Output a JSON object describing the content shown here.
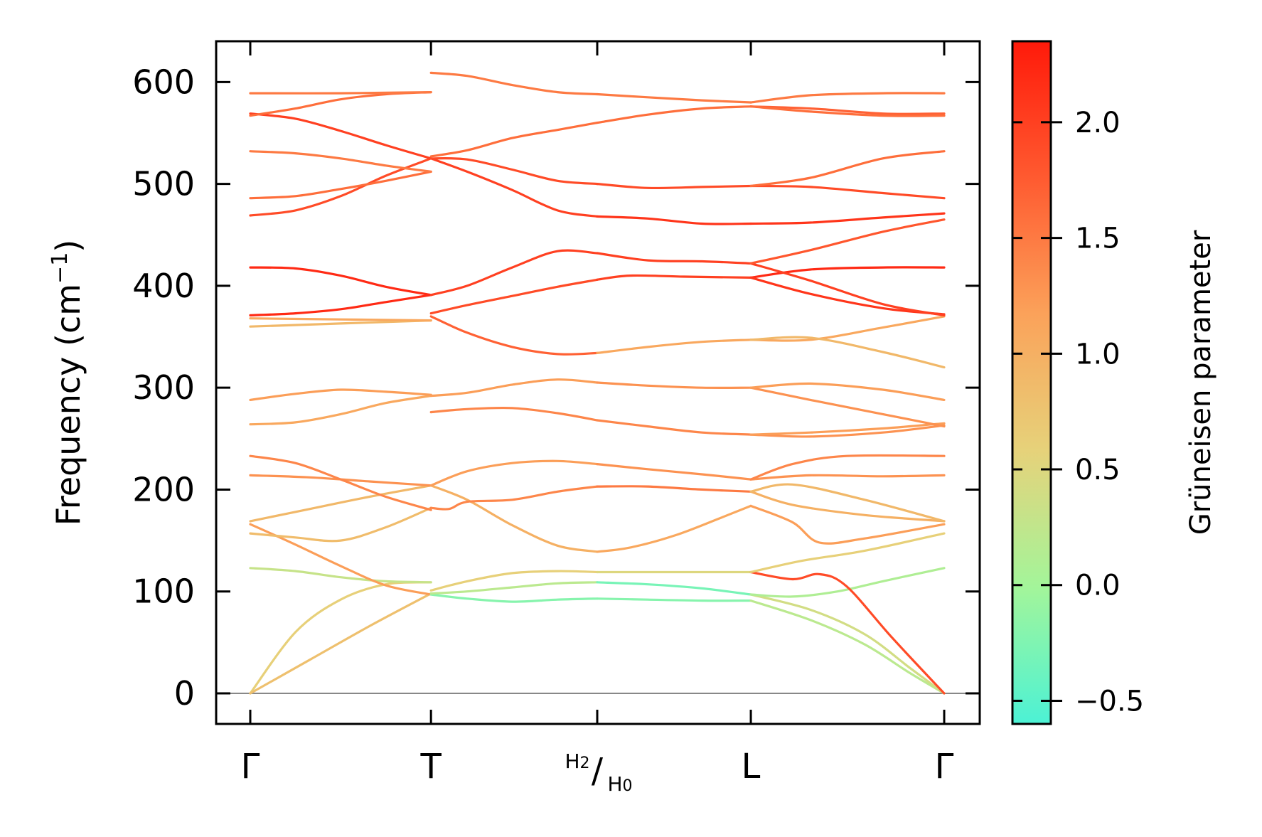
{
  "chart_data": {
    "type": "line",
    "title": "",
    "ylabel": "Frequency (cm",
    "ylabel_sup": "−1",
    "ylabel_close": ")",
    "xlabel": "",
    "ylim": [
      -30,
      640
    ],
    "yticks": [
      0,
      100,
      200,
      300,
      400,
      500,
      600
    ],
    "ytick_labels": [
      "0",
      "100",
      "200",
      "300",
      "400",
      "500",
      "600"
    ],
    "kpoints": [
      {
        "pos": 0.0,
        "label": "Γ"
      },
      {
        "pos": 1.0,
        "label": "T"
      },
      {
        "pos": 1.92,
        "label_main": "/",
        "label_num": "H",
        "label_num_sub": "2",
        "label_den": "H",
        "label_den_sub": "0"
      },
      {
        "pos": 2.77,
        "label": "L"
      },
      {
        "pos": 3.84,
        "label": "Γ"
      }
    ],
    "colorbar": {
      "label": "Grüneisen parameter",
      "range": [
        -0.6,
        2.35
      ],
      "ticks": [
        -0.5,
        0.0,
        0.5,
        1.0,
        1.5,
        2.0
      ],
      "tick_labels": [
        "−0.5",
        "0.0",
        "0.5",
        "1.0",
        "1.5",
        "2.0"
      ],
      "colors": [
        "#4cf2d5",
        "#a3f59a",
        "#e6d27a",
        "#fba25a",
        "#ff5a30",
        "#ff1a0a"
      ]
    },
    "zero_line": {
      "y": 0,
      "color": "#888888"
    },
    "series": [
      {
        "seg": "GT",
        "g": 0.6,
        "x": [
          0,
          0.25,
          0.5,
          0.75,
          1.0
        ],
        "y": [
          0,
          60,
          92,
          107,
          109
        ]
      },
      {
        "seg": "GT",
        "g": 0.8,
        "x": [
          0,
          0.33,
          0.66,
          1.0
        ],
        "y": [
          0,
          33,
          66,
          98
        ]
      },
      {
        "seg": "GT",
        "g": 0.3,
        "x": [
          0,
          0.25,
          0.5,
          0.75,
          1.0
        ],
        "y": [
          123,
          120,
          114,
          110,
          109
        ]
      },
      {
        "seg": "GT",
        "g": 1.2,
        "x": [
          0,
          0.25,
          0.5,
          0.75,
          1.0
        ],
        "y": [
          166,
          146,
          125,
          106,
          97
        ]
      },
      {
        "seg": "GT",
        "g": 0.85,
        "x": [
          0,
          0.25,
          0.5,
          0.75,
          1.0
        ],
        "y": [
          157,
          153,
          150,
          163,
          182
        ]
      },
      {
        "seg": "GT",
        "g": 0.9,
        "x": [
          0,
          0.33,
          0.66,
          1.0
        ],
        "y": [
          169,
          181,
          193,
          204
        ]
      },
      {
        "seg": "GT",
        "g": 1.3,
        "x": [
          0,
          0.33,
          0.66,
          1.0
        ],
        "y": [
          214,
          212,
          208,
          204
        ]
      },
      {
        "seg": "GT",
        "g": 1.4,
        "x": [
          0,
          0.25,
          0.5,
          0.75,
          1.0
        ],
        "y": [
          233,
          226,
          210,
          193,
          180
        ]
      },
      {
        "seg": "GT",
        "g": 1.1,
        "x": [
          0,
          0.25,
          0.5,
          0.75,
          1.0
        ],
        "y": [
          264,
          266,
          274,
          285,
          292
        ]
      },
      {
        "seg": "GT",
        "g": 1.2,
        "x": [
          0,
          0.25,
          0.5,
          0.75,
          1.0
        ],
        "y": [
          288,
          294,
          298,
          296,
          293
        ]
      },
      {
        "seg": "GT",
        "g": 0.9,
        "x": [
          0,
          0.5,
          1.0
        ],
        "y": [
          360,
          363,
          366
        ]
      },
      {
        "seg": "GT",
        "g": 1.1,
        "x": [
          0,
          0.5,
          1.0
        ],
        "y": [
          368,
          367,
          366
        ]
      },
      {
        "seg": "GT",
        "g": 2.2,
        "x": [
          0,
          0.25,
          0.5,
          0.75,
          1.0
        ],
        "y": [
          371,
          373,
          377,
          384,
          391
        ]
      },
      {
        "seg": "GT",
        "g": 2.2,
        "x": [
          0,
          0.25,
          0.5,
          0.75,
          1.0
        ],
        "y": [
          418,
          417,
          410,
          399,
          391
        ]
      },
      {
        "seg": "GT",
        "g": 1.9,
        "x": [
          0,
          0.25,
          0.5,
          0.75,
          1.0
        ],
        "y": [
          469,
          474,
          488,
          508,
          525
        ]
      },
      {
        "seg": "GT",
        "g": 1.6,
        "x": [
          0,
          0.25,
          0.5,
          0.75,
          1.0
        ],
        "y": [
          486,
          488,
          495,
          503,
          512
        ]
      },
      {
        "seg": "GT",
        "g": 1.5,
        "x": [
          0,
          0.25,
          0.5,
          0.75,
          1.0
        ],
        "y": [
          532,
          530,
          525,
          518,
          512
        ]
      },
      {
        "seg": "GT",
        "g": 2.0,
        "x": [
          0,
          0.25,
          0.5,
          0.75,
          1.0
        ],
        "y": [
          569,
          564,
          552,
          538,
          525
        ]
      },
      {
        "seg": "GT",
        "g": 1.6,
        "x": [
          0,
          0.25,
          0.5,
          0.75,
          1.0
        ],
        "y": [
          567,
          574,
          583,
          588,
          590
        ]
      },
      {
        "seg": "GT",
        "g": 1.5,
        "x": [
          0,
          0.5,
          1.0
        ],
        "y": [
          589,
          589,
          590
        ]
      },
      {
        "seg": "TH",
        "g": -0.2,
        "x": [
          1.0,
          1.2,
          1.45,
          1.7,
          1.92
        ],
        "y": [
          97,
          93,
          90,
          92,
          93
        ]
      },
      {
        "seg": "TH",
        "g": 0.2,
        "x": [
          1.0,
          1.2,
          1.45,
          1.7,
          1.92
        ],
        "y": [
          98,
          100,
          104,
          108,
          109
        ]
      },
      {
        "seg": "TH",
        "g": 0.6,
        "x": [
          1.0,
          1.2,
          1.45,
          1.7,
          1.92
        ],
        "y": [
          101,
          110,
          118,
          120,
          119
        ]
      },
      {
        "seg": "TH",
        "g": 1.0,
        "x": [
          1.0,
          1.2,
          1.45,
          1.7,
          1.92
        ],
        "y": [
          204,
          190,
          165,
          145,
          139
        ]
      },
      {
        "seg": "TH",
        "g": 1.4,
        "x": [
          1.0,
          1.1,
          1.2,
          1.45,
          1.7,
          1.92
        ],
        "y": [
          182,
          181,
          188,
          190,
          198,
          203
        ]
      },
      {
        "seg": "TH",
        "g": 1.2,
        "x": [
          1.0,
          1.2,
          1.45,
          1.7,
          1.92
        ],
        "y": [
          204,
          218,
          226,
          228,
          225
        ]
      },
      {
        "seg": "TH",
        "g": 1.4,
        "x": [
          1.0,
          1.2,
          1.45,
          1.7,
          1.92
        ],
        "y": [
          276,
          279,
          280,
          275,
          268
        ]
      },
      {
        "seg": "TH",
        "g": 1.2,
        "x": [
          1.0,
          1.2,
          1.45,
          1.7,
          1.92
        ],
        "y": [
          292,
          295,
          303,
          308,
          305
        ]
      },
      {
        "seg": "TH",
        "g": 1.7,
        "x": [
          1.0,
          1.2,
          1.45,
          1.7,
          1.92
        ],
        "y": [
          370,
          354,
          340,
          333,
          334
        ]
      },
      {
        "seg": "TH",
        "g": 1.9,
        "x": [
          1.0,
          1.2,
          1.45,
          1.7,
          1.92
        ],
        "y": [
          373,
          381,
          390,
          399,
          406
        ]
      },
      {
        "seg": "TH",
        "g": 2.0,
        "x": [
          1.0,
          1.2,
          1.45,
          1.7,
          1.92
        ],
        "y": [
          391,
          400,
          418,
          434,
          432
        ]
      },
      {
        "seg": "TH",
        "g": 2.0,
        "x": [
          1.0,
          1.2,
          1.45,
          1.7,
          1.92
        ],
        "y": [
          525,
          512,
          494,
          474,
          468
        ]
      },
      {
        "seg": "TH",
        "g": 1.9,
        "x": [
          1.0,
          1.2,
          1.45,
          1.7,
          1.92
        ],
        "y": [
          525,
          524,
          514,
          503,
          500
        ]
      },
      {
        "seg": "TH",
        "g": 1.6,
        "x": [
          1.0,
          1.2,
          1.45,
          1.7,
          1.92
        ],
        "y": [
          527,
          533,
          545,
          553,
          560
        ]
      },
      {
        "seg": "TH",
        "g": 1.5,
        "x": [
          1.0,
          1.2,
          1.45,
          1.7,
          1.92
        ],
        "y": [
          609,
          606,
          597,
          590,
          588
        ]
      },
      {
        "seg": "HL",
        "g": -0.2,
        "x": [
          1.92,
          2.2,
          2.5,
          2.77
        ],
        "y": [
          93,
          92,
          91,
          91
        ]
      },
      {
        "seg": "HL",
        "g": -0.3,
        "x": [
          1.92,
          2.2,
          2.5,
          2.77
        ],
        "y": [
          109,
          107,
          103,
          97
        ]
      },
      {
        "seg": "HL",
        "g": 0.5,
        "x": [
          1.92,
          2.2,
          2.5,
          2.77
        ],
        "y": [
          119,
          119,
          119,
          119
        ]
      },
      {
        "seg": "HL",
        "g": 1.1,
        "x": [
          1.92,
          2.1,
          2.35,
          2.6,
          2.77
        ],
        "y": [
          139,
          143,
          155,
          172,
          184
        ]
      },
      {
        "seg": "HL",
        "g": 1.5,
        "x": [
          1.92,
          2.2,
          2.5,
          2.77
        ],
        "y": [
          203,
          203,
          200,
          198
        ]
      },
      {
        "seg": "HL",
        "g": 1.3,
        "x": [
          1.92,
          2.2,
          2.5,
          2.77
        ],
        "y": [
          225,
          220,
          215,
          210
        ]
      },
      {
        "seg": "HL",
        "g": 1.4,
        "x": [
          1.92,
          2.2,
          2.5,
          2.77
        ],
        "y": [
          268,
          262,
          256,
          254
        ]
      },
      {
        "seg": "HL",
        "g": 1.3,
        "x": [
          1.92,
          2.2,
          2.5,
          2.77
        ],
        "y": [
          305,
          302,
          300,
          300
        ]
      },
      {
        "seg": "HL",
        "g": 1.1,
        "x": [
          1.92,
          2.2,
          2.5,
          2.77
        ],
        "y": [
          334,
          340,
          345,
          347
        ]
      },
      {
        "seg": "HL",
        "g": 2.0,
        "x": [
          1.92,
          2.1,
          2.4,
          2.77
        ],
        "y": [
          406,
          410,
          409,
          408
        ]
      },
      {
        "seg": "HL",
        "g": 2.0,
        "x": [
          1.92,
          2.2,
          2.5,
          2.77
        ],
        "y": [
          432,
          425,
          424,
          422
        ]
      },
      {
        "seg": "HL",
        "g": 2.1,
        "x": [
          1.92,
          2.2,
          2.5,
          2.77
        ],
        "y": [
          468,
          466,
          461,
          461
        ]
      },
      {
        "seg": "HL",
        "g": 1.9,
        "x": [
          1.92,
          2.2,
          2.5,
          2.77
        ],
        "y": [
          500,
          496,
          497,
          498
        ]
      },
      {
        "seg": "HL",
        "g": 1.6,
        "x": [
          1.92,
          2.2,
          2.5,
          2.77
        ],
        "y": [
          560,
          568,
          574,
          576
        ]
      },
      {
        "seg": "HL",
        "g": 1.5,
        "x": [
          1.92,
          2.2,
          2.5,
          2.77
        ],
        "y": [
          588,
          585,
          582,
          580
        ]
      },
      {
        "seg": "LG",
        "g": 0.2,
        "x": [
          2.77,
          3.1,
          3.4,
          3.65,
          3.84
        ],
        "y": [
          91,
          72,
          48,
          20,
          0
        ]
      },
      {
        "seg": "LG",
        "g": 0.4,
        "x": [
          2.77,
          3.1,
          3.4,
          3.65,
          3.84
        ],
        "y": [
          97,
          82,
          58,
          25,
          0
        ]
      },
      {
        "seg": "LG",
        "g": 0.1,
        "x": [
          2.77,
          3.0,
          3.25,
          3.5,
          3.84
        ],
        "y": [
          97,
          95,
          100,
          110,
          123
        ]
      },
      {
        "seg": "LG",
        "g": 1.9,
        "x": [
          2.77,
          3.0,
          3.15,
          3.3,
          3.55,
          3.84
        ],
        "y": [
          119,
          112,
          117,
          105,
          55,
          0
        ]
      },
      {
        "seg": "LG",
        "g": 0.6,
        "x": [
          2.77,
          3.05,
          3.4,
          3.84
        ],
        "y": [
          119,
          130,
          140,
          157
        ]
      },
      {
        "seg": "LG",
        "g": 1.2,
        "x": [
          2.77,
          3.0,
          3.15,
          3.4,
          3.84
        ],
        "y": [
          184,
          168,
          148,
          152,
          166
        ]
      },
      {
        "seg": "LG",
        "g": 1.0,
        "x": [
          2.77,
          3.0,
          3.4,
          3.84
        ],
        "y": [
          198,
          185,
          175,
          169
        ]
      },
      {
        "seg": "LG",
        "g": 0.9,
        "x": [
          2.77,
          3.0,
          3.4,
          3.84
        ],
        "y": [
          198,
          205,
          190,
          169
        ]
      },
      {
        "seg": "LG",
        "g": 1.3,
        "x": [
          2.77,
          3.1,
          3.5,
          3.84
        ],
        "y": [
          210,
          214,
          213,
          214
        ]
      },
      {
        "seg": "LG",
        "g": 1.4,
        "x": [
          2.77,
          3.0,
          3.3,
          3.84
        ],
        "y": [
          210,
          225,
          233,
          233
        ]
      },
      {
        "seg": "LG",
        "g": 1.3,
        "x": [
          2.77,
          3.1,
          3.5,
          3.84
        ],
        "y": [
          254,
          252,
          256,
          263
        ]
      },
      {
        "seg": "LG",
        "g": 1.2,
        "x": [
          2.77,
          3.1,
          3.5,
          3.84
        ],
        "y": [
          254,
          256,
          260,
          265
        ]
      },
      {
        "seg": "LG",
        "g": 1.3,
        "x": [
          2.77,
          3.1,
          3.5,
          3.84
        ],
        "y": [
          300,
          288,
          274,
          262
        ]
      },
      {
        "seg": "LG",
        "g": 1.2,
        "x": [
          2.77,
          3.1,
          3.5,
          3.84
        ],
        "y": [
          300,
          304,
          298,
          288
        ]
      },
      {
        "seg": "LG",
        "g": 1.1,
        "x": [
          2.77,
          3.1,
          3.5,
          3.84
        ],
        "y": [
          347,
          347,
          359,
          370
        ]
      },
      {
        "seg": "LG",
        "g": 0.9,
        "x": [
          2.77,
          3.1,
          3.5,
          3.84
        ],
        "y": [
          347,
          349,
          335,
          320
        ]
      },
      {
        "seg": "LG",
        "g": 2.2,
        "x": [
          2.77,
          3.1,
          3.5,
          3.84
        ],
        "y": [
          408,
          416,
          418,
          418
        ]
      },
      {
        "seg": "LG",
        "g": 2.1,
        "x": [
          2.77,
          3.1,
          3.5,
          3.84
        ],
        "y": [
          408,
          392,
          378,
          372
        ]
      },
      {
        "seg": "LG",
        "g": 2.0,
        "x": [
          2.77,
          3.1,
          3.5,
          3.84
        ],
        "y": [
          422,
          405,
          382,
          371
        ]
      },
      {
        "seg": "LG",
        "g": 1.8,
        "x": [
          2.77,
          3.1,
          3.5,
          3.84
        ],
        "y": [
          422,
          435,
          453,
          465
        ]
      },
      {
        "seg": "LG",
        "g": 2.1,
        "x": [
          2.77,
          3.1,
          3.5,
          3.84
        ],
        "y": [
          461,
          462,
          467,
          471
        ]
      },
      {
        "seg": "LG",
        "g": 1.9,
        "x": [
          2.77,
          3.1,
          3.5,
          3.84
        ],
        "y": [
          498,
          497,
          491,
          486
        ]
      },
      {
        "seg": "LG",
        "g": 1.6,
        "x": [
          2.77,
          3.1,
          3.5,
          3.84
        ],
        "y": [
          498,
          506,
          525,
          532
        ]
      },
      {
        "seg": "LG",
        "g": 1.7,
        "x": [
          2.77,
          3.1,
          3.5,
          3.84
        ],
        "y": [
          576,
          574,
          569,
          569
        ]
      },
      {
        "seg": "LG",
        "g": 1.6,
        "x": [
          2.77,
          3.1,
          3.5,
          3.84
        ],
        "y": [
          576,
          571,
          567,
          567
        ]
      },
      {
        "seg": "LG",
        "g": 1.5,
        "x": [
          2.77,
          3.1,
          3.5,
          3.84
        ],
        "y": [
          580,
          587,
          589,
          589
        ]
      }
    ]
  }
}
